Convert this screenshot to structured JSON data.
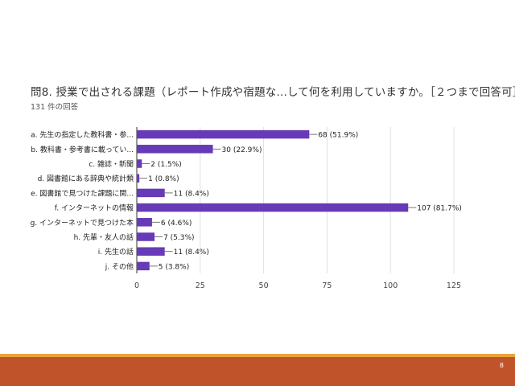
{
  "slide": {
    "page_number": "8"
  },
  "chart_data": {
    "type": "bar",
    "orientation": "horizontal",
    "title": "問8. 授業で出される課題（レポート作成や宿題な...して何を利用していますか。［２つまで回答可］",
    "subtitle": "131 件の回答",
    "categories": [
      "a. 先生の指定した教科書・参...",
      "b. 教科書・参考書に載ってい...",
      "c. 雑誌・新聞",
      "d. 図書館にある辞典や統計類",
      "e. 図書館で見つけた課題に関...",
      "f. インターネットの情報",
      "g. インターネットで見つけた本",
      "h. 先輩・友人の話",
      "i. 先生の話",
      "j. その他"
    ],
    "values": [
      68,
      30,
      2,
      1,
      11,
      107,
      6,
      7,
      11,
      5
    ],
    "data_labels": [
      "68 (51.9%)",
      "30 (22.9%)",
      "2 (1.5%)",
      "1 (0.8%)",
      "11 (8.4%)",
      "107 (81.7%)",
      "6 (4.6%)",
      "7 (5.3%)",
      "11 (8.4%)",
      "5 (3.8%)"
    ],
    "xlim": [
      0,
      125
    ],
    "xticks": [
      "0",
      "25",
      "50",
      "75",
      "100",
      "125"
    ],
    "bar_color": "#673ab7",
    "grid": true
  }
}
